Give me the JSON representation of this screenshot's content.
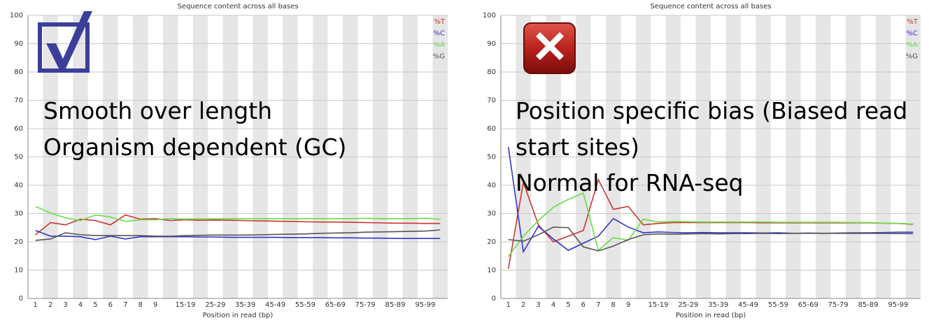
{
  "chart_data": [
    {
      "type": "line",
      "title": "Sequence content across all bases",
      "xlabel": "Position in read (bp)",
      "categories": [
        "1",
        "2",
        "3",
        "4",
        "5",
        "6",
        "7",
        "8",
        "9",
        null,
        "15-19",
        null,
        "25-29",
        null,
        "35-39",
        null,
        "45-49",
        null,
        "55-59",
        null,
        "65-69",
        null,
        "75-79",
        null,
        "85-89",
        null,
        "95-99",
        null
      ],
      "series": [
        {
          "name": "%T",
          "color": "#cc3333",
          "values": [
            22.5,
            26.8,
            26,
            28,
            27.5,
            26,
            29.5,
            28,
            28.2,
            27.5,
            27.8,
            27.6,
            27.7,
            27.6,
            27.5,
            27.4,
            27.3,
            27.2,
            27.1,
            27,
            27,
            26.9,
            26.8,
            26.7,
            26.6,
            26.6,
            26.5,
            26.5
          ]
        },
        {
          "name": "%C",
          "color": "#3333cc",
          "values": [
            24,
            22,
            22,
            21.8,
            20.8,
            22,
            21,
            21.8,
            21.8,
            21.8,
            21.8,
            21.7,
            21.7,
            21.6,
            21.6,
            21.6,
            21.6,
            21.5,
            21.5,
            21.5,
            21.4,
            21.4,
            21.3,
            21.3,
            21.2,
            21.2,
            21.2,
            21.2
          ]
        },
        {
          "name": "%A",
          "color": "#66dd44",
          "values": [
            32.5,
            30.2,
            28.5,
            27.5,
            29.5,
            28.8,
            27.2,
            27.8,
            27.8,
            28.2,
            28,
            28.1,
            28.1,
            28.2,
            28.2,
            28.2,
            28.2,
            28.2,
            28.2,
            28.2,
            28.2,
            28.2,
            28.3,
            28.2,
            28.2,
            28.2,
            28.3,
            28
          ]
        },
        {
          "name": "%G",
          "color": "#555555",
          "values": [
            20.5,
            21,
            23.2,
            22.5,
            22.2,
            22.2,
            22.2,
            22.2,
            22,
            22,
            22.2,
            22.3,
            22.4,
            22.4,
            22.4,
            22.5,
            22.6,
            22.7,
            22.8,
            23,
            23.1,
            23.2,
            23.4,
            23.5,
            23.6,
            23.7,
            23.8,
            24.2
          ]
        }
      ],
      "ylim": [
        0,
        100
      ],
      "yticks": [
        0,
        10,
        20,
        30,
        40,
        50,
        60,
        70,
        80,
        90,
        100
      ],
      "grid": true,
      "legend": "top-right",
      "annotations": [
        "Smooth over length",
        "Organism dependent (GC)"
      ]
    },
    {
      "type": "line",
      "title": "Sequence content across all bases",
      "xlabel": "Position in read (bp)",
      "categories": [
        "1",
        "2",
        "3",
        "4",
        "5",
        "6",
        "7",
        "8",
        "9",
        null,
        "15-19",
        null,
        "25-29",
        null,
        "35-39",
        null,
        "45-49",
        null,
        "55-59",
        null,
        "65-69",
        null,
        "75-79",
        null,
        "85-89",
        null,
        "95-99",
        null
      ],
      "series": [
        {
          "name": "%T",
          "color": "#cc3333",
          "values": [
            10.5,
            41,
            26,
            20,
            22,
            24,
            42,
            31.5,
            32.5,
            26,
            26.5,
            26.8,
            26.8,
            26.8,
            26.8,
            26.8,
            26.8,
            26.7,
            26.7,
            26.7,
            26.7,
            26.7,
            26.7,
            26.7,
            26.7,
            26.6,
            26.5,
            26.2
          ]
        },
        {
          "name": "%C",
          "color": "#3333cc",
          "values": [
            53.5,
            16.5,
            25.5,
            21,
            17,
            19.5,
            22,
            28.2,
            25.2,
            23.2,
            23.5,
            23.3,
            23.2,
            23.3,
            23.2,
            23.2,
            23.2,
            23.1,
            23.2,
            23,
            23.1,
            23,
            23,
            23,
            23,
            23,
            22.9,
            22.9
          ]
        },
        {
          "name": "%A",
          "color": "#66dd44",
          "values": [
            14.8,
            22,
            27.5,
            32.2,
            35,
            37.2,
            17,
            21.5,
            20.5,
            28,
            27,
            27.2,
            27.1,
            27,
            27,
            27,
            27,
            27,
            26.9,
            26.9,
            26.9,
            26.9,
            26.9,
            26.8,
            26.8,
            26.6,
            26.5,
            26.3
          ]
        },
        {
          "name": "%G",
          "color": "#555555",
          "values": [
            20.8,
            20.2,
            22.5,
            25.2,
            25,
            18.2,
            16.8,
            18.5,
            20.8,
            22.5,
            22.8,
            22.7,
            22.8,
            22.9,
            22.8,
            22.9,
            22.9,
            23,
            22.9,
            23,
            23,
            23,
            23.1,
            23.2,
            23.2,
            23.3,
            23.4,
            23.4
          ]
        }
      ],
      "ylim": [
        0,
        100
      ],
      "yticks": [
        0,
        10,
        20,
        30,
        40,
        50,
        60,
        70,
        80,
        90,
        100
      ],
      "grid": true,
      "legend": "top-right",
      "annotations": [
        "Position specific bias (Biased read",
        "start sites)",
        "Normal for RNA-seq"
      ]
    }
  ]
}
